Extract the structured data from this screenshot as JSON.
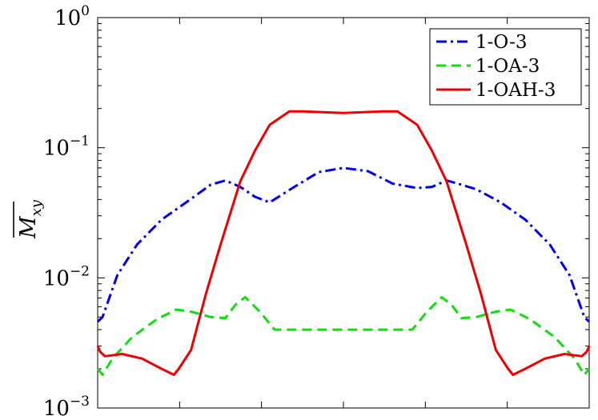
{
  "chart_data": {
    "type": "line",
    "title": "",
    "xlabel": "",
    "ylabel": "M",
    "ylabel_subscript": "xy",
    "yscale": "log",
    "ylim": [
      0.001,
      1
    ],
    "xlim": [
      0,
      1
    ],
    "grid": false,
    "legend_position": "top-right",
    "y_ticks": [
      {
        "base": "10",
        "exp": "0",
        "value": 1
      },
      {
        "base": "10",
        "exp": "−1",
        "value": 0.1
      },
      {
        "base": "10",
        "exp": "−2",
        "value": 0.01
      },
      {
        "base": "10",
        "exp": "−3",
        "value": 0.001
      }
    ],
    "x_ticks": [
      0,
      0.1667,
      0.3333,
      0.5,
      0.6667,
      0.8333,
      1
    ],
    "series": [
      {
        "name": "1-O-3",
        "color": "#0000ee",
        "dash": "dashdot",
        "x": [
          0,
          0.01,
          0.04,
          0.08,
          0.13,
          0.18,
          0.23,
          0.26,
          0.29,
          0.32,
          0.35,
          0.4,
          0.45,
          0.5,
          0.55,
          0.6,
          0.65,
          0.68,
          0.71,
          0.74,
          0.77,
          0.82,
          0.87,
          0.92,
          0.96,
          0.99,
          1.0
        ],
        "y": [
          0.0046,
          0.005,
          0.0105,
          0.018,
          0.028,
          0.038,
          0.052,
          0.056,
          0.05,
          0.042,
          0.038,
          0.05,
          0.065,
          0.07,
          0.066,
          0.053,
          0.049,
          0.05,
          0.056,
          0.052,
          0.048,
          0.038,
          0.028,
          0.018,
          0.0105,
          0.005,
          0.0046
        ]
      },
      {
        "name": "1-OA-3",
        "color": "#11dd11",
        "dash": "dashed",
        "x": [
          0,
          0.01,
          0.03,
          0.07,
          0.12,
          0.16,
          0.19,
          0.23,
          0.26,
          0.28,
          0.3,
          0.33,
          0.36,
          0.5,
          0.64,
          0.67,
          0.7,
          0.72,
          0.74,
          0.77,
          0.81,
          0.84,
          0.88,
          0.93,
          0.97,
          0.99,
          1.0
        ],
        "y": [
          0.002,
          0.0018,
          0.0024,
          0.0035,
          0.0048,
          0.0057,
          0.0055,
          0.005,
          0.0049,
          0.0062,
          0.0071,
          0.0055,
          0.004,
          0.004,
          0.004,
          0.0055,
          0.0071,
          0.0062,
          0.0049,
          0.005,
          0.0055,
          0.0057,
          0.0048,
          0.0035,
          0.0024,
          0.0018,
          0.002
        ]
      },
      {
        "name": "1-OAH-3",
        "color": "#ee0000",
        "dash": "solid",
        "x": [
          0,
          0.005,
          0.015,
          0.05,
          0.09,
          0.13,
          0.155,
          0.165,
          0.19,
          0.22,
          0.25,
          0.29,
          0.32,
          0.35,
          0.39,
          0.42,
          0.5,
          0.58,
          0.61,
          0.65,
          0.68,
          0.71,
          0.75,
          0.78,
          0.81,
          0.835,
          0.845,
          0.87,
          0.91,
          0.95,
          0.985,
          0.995,
          1.0
        ],
        "y": [
          0.003,
          0.0027,
          0.0025,
          0.0026,
          0.0024,
          0.002,
          0.0018,
          0.002,
          0.0028,
          0.0075,
          0.018,
          0.055,
          0.095,
          0.15,
          0.19,
          0.19,
          0.185,
          0.19,
          0.19,
          0.15,
          0.095,
          0.055,
          0.018,
          0.0075,
          0.0028,
          0.002,
          0.0018,
          0.002,
          0.0024,
          0.0026,
          0.0025,
          0.0027,
          0.003
        ]
      }
    ]
  }
}
